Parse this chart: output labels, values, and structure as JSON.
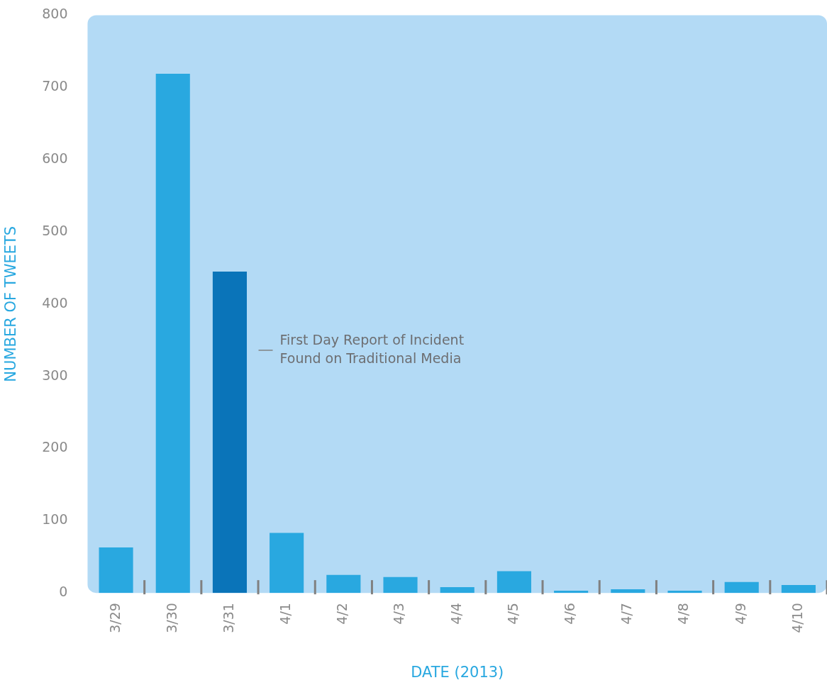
{
  "chart_data": {
    "type": "bar",
    "xlabel": "DATE (2013)",
    "ylabel": "NUMBER OF TWEETS",
    "categories": [
      "3/29",
      "3/30",
      "3/31",
      "4/1",
      "4/2",
      "4/3",
      "4/4",
      "4/5",
      "4/6",
      "4/7",
      "4/8",
      "4/9",
      "4/10"
    ],
    "values": [
      63,
      719,
      445,
      83,
      25,
      22,
      8,
      30,
      3,
      5,
      3,
      15,
      11
    ],
    "colors": [
      "#29a8e0",
      "#29a8e0",
      "#0a74b9",
      "#29a8e0",
      "#29a8e0",
      "#29a8e0",
      "#29a8e0",
      "#29a8e0",
      "#29a8e0",
      "#29a8e0",
      "#29a8e0",
      "#29a8e0",
      "#29a8e0"
    ],
    "ylim": [
      0,
      800
    ],
    "yticks": [
      0,
      100,
      200,
      300,
      400,
      500,
      600,
      700,
      800
    ],
    "grid": false,
    "legend": false,
    "annotations": [
      "First Day Report of Incident\nFound on Traditional Media"
    ]
  }
}
